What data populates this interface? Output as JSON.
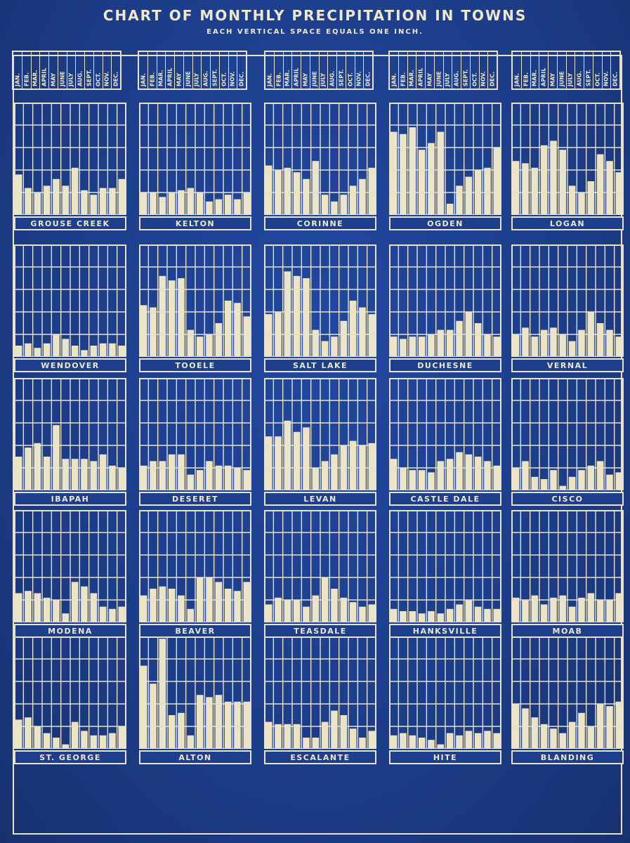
{
  "title": "CHART OF MONTHLY PRECIPITATION IN TOWNS",
  "subtitle": "EACH VERTICAL SPACE EQUALS ONE INCH.",
  "colors": {
    "background": "#1d3f8c",
    "ink": "#e9e2c8",
    "bar": "#ece4c6"
  },
  "month_labels": [
    "JAN.",
    "FEB.",
    "MAR.",
    "APRIL",
    "MAY",
    "JUNE",
    "JULY",
    "AUG.",
    "SEPT.",
    "OCT.",
    "NOV.",
    "DEC."
  ],
  "chart_data": {
    "type": "bar",
    "categories": [
      "JAN.",
      "FEB.",
      "MAR.",
      "APRIL",
      "MAY",
      "JUNE",
      "JULY",
      "AUG.",
      "SEPT.",
      "OCT.",
      "NOV.",
      "DEC."
    ],
    "ylim": [
      0,
      5
    ],
    "unit": "inch",
    "grid": true,
    "series": [
      {
        "name": "GROUSE CREEK",
        "values": [
          1.8,
          1.2,
          1.0,
          1.3,
          1.6,
          1.3,
          2.1,
          1.1,
          0.9,
          1.2,
          1.2,
          1.6
        ]
      },
      {
        "name": "KELTON",
        "values": [
          1.0,
          1.0,
          0.8,
          1.0,
          1.1,
          1.2,
          1.0,
          0.6,
          0.7,
          0.9,
          0.7,
          1.0
        ]
      },
      {
        "name": "CORINNE",
        "values": [
          2.2,
          2.0,
          2.1,
          1.9,
          1.6,
          2.4,
          0.9,
          0.6,
          0.9,
          1.3,
          1.6,
          2.1
        ]
      },
      {
        "name": "OGDEN",
        "values": [
          3.7,
          3.6,
          3.9,
          2.9,
          3.2,
          3.7,
          0.5,
          1.3,
          1.7,
          2.0,
          2.1,
          3.0
        ]
      },
      {
        "name": "LOGAN",
        "values": [
          2.4,
          2.3,
          2.1,
          3.1,
          3.3,
          2.9,
          1.3,
          1.0,
          1.5,
          2.7,
          2.4,
          1.9
        ]
      },
      {
        "name": "WENDOVER",
        "values": [
          0.5,
          0.6,
          0.4,
          0.6,
          1.0,
          0.8,
          0.5,
          0.3,
          0.5,
          0.6,
          0.6,
          0.5
        ]
      },
      {
        "name": "TOOELE",
        "values": [
          2.3,
          2.2,
          3.6,
          3.4,
          3.5,
          1.2,
          0.9,
          1.0,
          1.5,
          2.5,
          2.4,
          1.8
        ]
      },
      {
        "name": "SALT LAKE",
        "values": [
          1.9,
          2.0,
          3.8,
          3.6,
          3.5,
          1.2,
          0.7,
          0.9,
          1.6,
          2.5,
          2.2,
          1.9
        ]
      },
      {
        "name": "DUCHESNE",
        "values": [
          0.9,
          0.8,
          0.9,
          0.9,
          1.0,
          1.2,
          1.2,
          1.6,
          2.0,
          1.5,
          1.0,
          0.9
        ]
      },
      {
        "name": "VERNAL",
        "values": [
          1.0,
          1.3,
          0.9,
          1.2,
          1.3,
          1.0,
          0.7,
          1.2,
          2.0,
          1.5,
          1.2,
          0.9
        ]
      },
      {
        "name": "IBAPAH",
        "values": [
          1.5,
          1.9,
          2.1,
          1.5,
          2.9,
          1.4,
          1.4,
          1.4,
          1.3,
          1.6,
          1.1,
          1.0
        ]
      },
      {
        "name": "DESERET",
        "values": [
          1.1,
          1.3,
          1.3,
          1.6,
          1.6,
          0.7,
          0.9,
          1.3,
          1.1,
          1.1,
          1.0,
          0.9
        ]
      },
      {
        "name": "LEVAN",
        "values": [
          2.4,
          2.4,
          3.1,
          2.6,
          2.8,
          1.0,
          1.3,
          1.6,
          2.0,
          2.2,
          2.0,
          2.1
        ]
      },
      {
        "name": "CASTLE DALE",
        "values": [
          1.4,
          1.0,
          0.9,
          0.9,
          0.8,
          1.3,
          1.4,
          1.7,
          1.6,
          1.5,
          1.3,
          1.1
        ]
      },
      {
        "name": "CISCO",
        "values": [
          1.0,
          1.3,
          0.6,
          0.5,
          0.9,
          0.2,
          0.6,
          0.9,
          1.1,
          1.3,
          0.7,
          0.8
        ]
      },
      {
        "name": "MODENA",
        "values": [
          1.3,
          1.4,
          1.3,
          1.1,
          1.0,
          0.4,
          1.8,
          1.6,
          1.3,
          0.7,
          0.6,
          0.7
        ]
      },
      {
        "name": "BEAVER",
        "values": [
          1.2,
          1.5,
          1.6,
          1.5,
          1.2,
          0.6,
          2.0,
          2.0,
          1.8,
          1.5,
          1.4,
          1.8
        ]
      },
      {
        "name": "TEASDALE",
        "values": [
          0.8,
          1.1,
          1.0,
          1.0,
          0.7,
          1.2,
          2.0,
          1.5,
          1.1,
          0.9,
          0.7,
          0.8
        ]
      },
      {
        "name": "HANKSVILLE",
        "values": [
          0.6,
          0.5,
          0.5,
          0.4,
          0.5,
          0.4,
          0.6,
          0.8,
          1.0,
          0.7,
          0.6,
          0.6
        ]
      },
      {
        "name": "MOAB",
        "values": [
          1.1,
          1.0,
          1.2,
          0.8,
          1.1,
          1.2,
          0.7,
          1.1,
          1.3,
          1.0,
          1.0,
          1.3
        ]
      },
      {
        "name": "ST. GEORGE",
        "values": [
          1.3,
          1.4,
          1.0,
          0.7,
          0.5,
          0.2,
          1.2,
          0.8,
          0.6,
          0.6,
          0.7,
          1.0
        ]
      },
      {
        "name": "ALTON",
        "values": [
          3.7,
          2.9,
          4.9,
          1.5,
          1.6,
          0.6,
          2.4,
          2.3,
          2.4,
          2.1,
          2.1,
          2.1
        ]
      },
      {
        "name": "ESCALANTE",
        "values": [
          1.2,
          1.1,
          1.1,
          1.1,
          0.5,
          0.5,
          1.2,
          1.7,
          1.5,
          0.9,
          0.5,
          0.8
        ]
      },
      {
        "name": "HITE",
        "values": [
          0.6,
          0.7,
          0.6,
          0.5,
          0.4,
          0.2,
          0.7,
          0.6,
          0.8,
          0.7,
          0.8,
          0.7
        ]
      },
      {
        "name": "BLANDING",
        "values": [
          2.0,
          1.8,
          1.4,
          1.1,
          0.9,
          0.7,
          1.2,
          1.6,
          1.0,
          2.0,
          1.9,
          2.1
        ]
      }
    ]
  }
}
